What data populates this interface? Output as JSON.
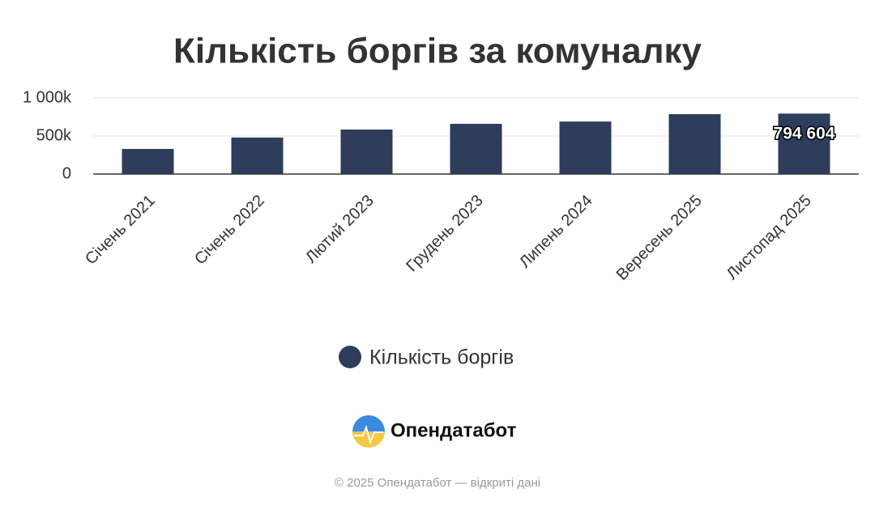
{
  "chart_data": {
    "type": "bar",
    "title": "Кількість боргів за комуналку",
    "categories": [
      "Січень 2021",
      "Січень 2022",
      "Лютий 2023",
      "Грудень 2023",
      "Липень 2024",
      "Вересень 2025",
      "Листопад 2025"
    ],
    "series": [
      {
        "name": "Кількість боргів",
        "color": "#2e3d5c",
        "values": [
          330000,
          480000,
          585000,
          660000,
          690000,
          787000,
          794604
        ]
      }
    ],
    "value_labels": [
      null,
      null,
      null,
      null,
      null,
      null,
      "794 604"
    ],
    "ylim": [
      0,
      1000000
    ],
    "yticks": [
      0,
      {
        "value": 500000,
        "label": "500k"
      },
      {
        "value": 1000000,
        "label": "1 000k"
      }
    ],
    "grid": true,
    "legend": "bottom"
  },
  "brand": "Опендатабот",
  "footer": "© 2025 Опендатабот — відкриті дані"
}
